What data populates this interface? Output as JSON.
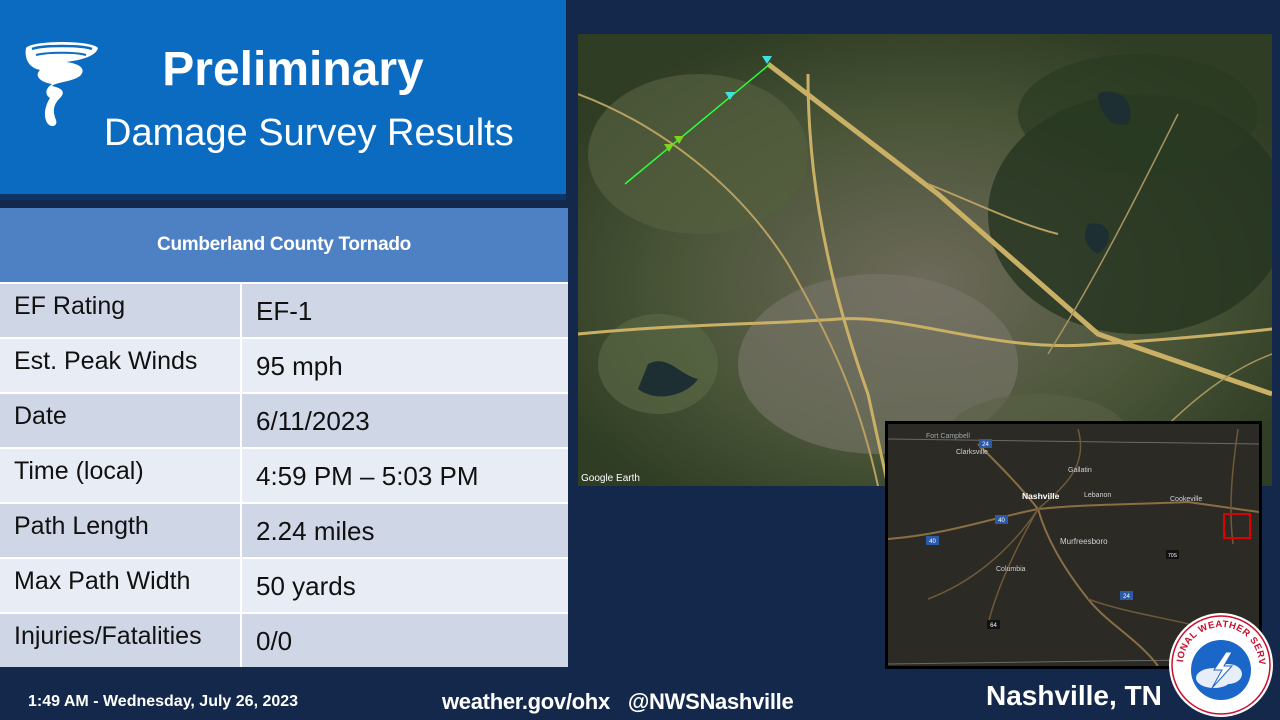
{
  "header": {
    "title_line1": "Preliminary",
    "title_line2": "Damage Survey Results",
    "icon": "tornado-icon"
  },
  "table": {
    "title": "Cumberland  County Tornado",
    "rows": [
      {
        "label": "EF Rating",
        "value": "EF-1"
      },
      {
        "label": "Est. Peak Winds",
        "value": "95 mph"
      },
      {
        "label": "Date",
        "value": "6/11/2023"
      },
      {
        "label": "Time (local)",
        "value": "4:59 PM – 5:03 PM"
      },
      {
        "label": "Path Length",
        "value": "2.24 miles"
      },
      {
        "label": "Max Path Width",
        "value": "50 yards"
      },
      {
        "label": "Injuries/Fatalities",
        "value": "0/0"
      }
    ]
  },
  "satellite_map": {
    "watermark": "Google Earth"
  },
  "inset_map": {
    "places": [
      "Fort Campbell",
      "Clarksville",
      "Gallatin",
      "Nashville",
      "Lebanon",
      "Cookeville",
      "Murfreesboro",
      "Columbia"
    ],
    "shields": [
      "24",
      "40",
      "40",
      "24",
      "70S",
      "64"
    ]
  },
  "footer": {
    "timestamp": "1:49 AM - Wednesday, July 26, 2023",
    "website": "weather.gov/ohx",
    "handle": "@NWSNashville",
    "office": "Nashville, TN"
  },
  "logo": {
    "text": "NATIONAL WEATHER SERVICE"
  },
  "colors": {
    "background": "#13284a",
    "header": "#0a6bc1",
    "table_header": "#4e80c4",
    "row_dark": "#cfd6e6",
    "row_light": "#e8ecf4"
  }
}
